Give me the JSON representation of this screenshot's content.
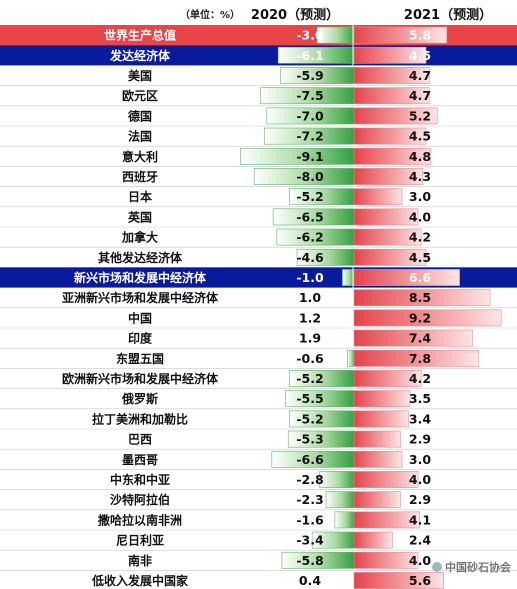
{
  "header": {
    "unit": "（单位：%）",
    "col2020": "2020（预测）",
    "col2021": "2021（预测）"
  },
  "watermark": "中国砂石协会",
  "colors": {
    "world_row": "#e8454a",
    "group_row": "#0a1a9c",
    "green": "#3aa84a",
    "red": "#e85a60"
  },
  "chart_data": {
    "type": "table",
    "series": [
      {
        "name": "2020（预测）",
        "key": "v2020"
      },
      {
        "name": "2021（预测）",
        "key": "v2021"
      }
    ],
    "rows": [
      {
        "label": "世界生产总值",
        "v2020": -3.0,
        "v2021": 5.8,
        "style": "world"
      },
      {
        "label": "发达经济体",
        "v2020": -6.1,
        "v2021": 4.5,
        "style": "group"
      },
      {
        "label": "美国",
        "v2020": -5.9,
        "v2021": 4.7
      },
      {
        "label": "欧元区",
        "v2020": -7.5,
        "v2021": 4.7
      },
      {
        "label": "德国",
        "v2020": -7.0,
        "v2021": 5.2
      },
      {
        "label": "法国",
        "v2020": -7.2,
        "v2021": 4.5
      },
      {
        "label": "意大利",
        "v2020": -9.1,
        "v2021": 4.8
      },
      {
        "label": "西班牙",
        "v2020": -8.0,
        "v2021": 4.3
      },
      {
        "label": "日本",
        "v2020": -5.2,
        "v2021": 3.0
      },
      {
        "label": "英国",
        "v2020": -6.5,
        "v2021": 4.0
      },
      {
        "label": "加拿大",
        "v2020": -6.2,
        "v2021": 4.2
      },
      {
        "label": "其他发达经济体",
        "v2020": -4.6,
        "v2021": 4.5
      },
      {
        "label": "新兴市场和发展中经济体",
        "v2020": -1.0,
        "v2021": 6.6,
        "style": "group"
      },
      {
        "label": "亚洲新兴市场和发展中经济体",
        "v2020": 1.0,
        "v2021": 8.5
      },
      {
        "label": "中国",
        "v2020": 1.2,
        "v2021": 9.2
      },
      {
        "label": "印度",
        "v2020": 1.9,
        "v2021": 7.4
      },
      {
        "label": "东盟五国",
        "v2020": -0.6,
        "v2021": 7.8
      },
      {
        "label": "欧洲新兴市场和发展中经济体",
        "v2020": -5.2,
        "v2021": 4.2
      },
      {
        "label": "俄罗斯",
        "v2020": -5.5,
        "v2021": 3.5
      },
      {
        "label": "拉丁美洲和加勒比",
        "v2020": -5.2,
        "v2021": 3.4
      },
      {
        "label": "巴西",
        "v2020": -5.3,
        "v2021": 2.9
      },
      {
        "label": "墨西哥",
        "v2020": -6.6,
        "v2021": 3.0
      },
      {
        "label": "中东和中亚",
        "v2020": -2.8,
        "v2021": 4.0
      },
      {
        "label": "沙特阿拉伯",
        "v2020": -2.3,
        "v2021": 2.9
      },
      {
        "label": "撒哈拉以南非洲",
        "v2020": -1.6,
        "v2021": 4.1
      },
      {
        "label": "尼日利亚",
        "v2020": -3.4,
        "v2021": 2.4
      },
      {
        "label": "南非",
        "v2020": -5.8,
        "v2021": 4.0
      },
      {
        "label": "低收入发展中国家",
        "v2020": 0.4,
        "v2021": 5.6
      }
    ]
  }
}
